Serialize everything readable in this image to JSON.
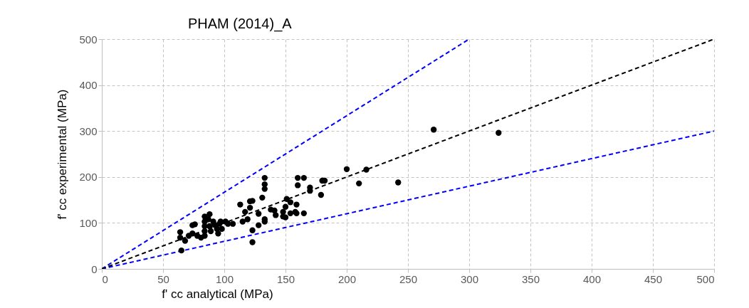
{
  "chart_data": {
    "type": "scatter",
    "title": "PHAM (2014)_A",
    "xlabel": "f' cc analytical (MPa)",
    "ylabel": "f' cc experimental (MPa)",
    "xlim": [
      0,
      500
    ],
    "ylim": [
      0,
      500
    ],
    "xticks": [
      0,
      50,
      100,
      150,
      200,
      250,
      300,
      350,
      400,
      450,
      500
    ],
    "yticks": [
      0,
      100,
      200,
      300,
      400,
      500
    ],
    "grid": true,
    "series": [
      {
        "type": "line",
        "color": "#0000ff",
        "line_style": "dashed",
        "marker": "none",
        "x": [
          0,
          300
        ],
        "values": [
          0,
          500
        ]
      },
      {
        "type": "line",
        "color": "#0000ff",
        "line_style": "dashed",
        "marker": "none",
        "x": [
          0,
          500
        ],
        "values": [
          0,
          300
        ]
      },
      {
        "type": "line",
        "color": "#000000",
        "line_style": "dashed",
        "marker": "none",
        "x": [
          0,
          500
        ],
        "values": [
          0,
          500
        ]
      },
      {
        "type": "scatter",
        "color": "#000000",
        "marker": "circle",
        "x": [
          271,
          324,
          200,
          216,
          210,
          242,
          160,
          165,
          160,
          180,
          182,
          179,
          170,
          170,
          165,
          133,
          133,
          133,
          131,
          113,
          121,
          123,
          121,
          117,
          128,
          115,
          119,
          123,
          123,
          128,
          133,
          133,
          138,
          141,
          142,
          150,
          151,
          154,
          148,
          150,
          154,
          158,
          159,
          159,
          148,
          107,
          64,
          64,
          65,
          68,
          71,
          74,
          76,
          74,
          78,
          81,
          84,
          84,
          84,
          84,
          84,
          87,
          88,
          89,
          91,
          92,
          94,
          95,
          96,
          98,
          97,
          101,
          103,
          88
        ],
        "values": [
          303,
          296,
          217,
          216,
          186,
          188,
          198,
          198,
          182,
          192,
          192,
          161,
          177,
          170,
          121,
          198,
          184,
          174,
          155,
          140,
          147,
          148,
          133,
          124,
          120,
          103,
          108,
          84,
          58,
          95,
          108,
          103,
          129,
          127,
          117,
          135,
          152,
          145,
          114,
          112,
          121,
          124,
          140,
          121,
          124,
          98,
          80,
          68,
          40,
          61,
          72,
          95,
          97,
          77,
          72,
          68,
          114,
          103,
          93,
          82,
          72,
          108,
          93,
          82,
          103,
          96,
          87,
          77,
          98,
          87,
          103,
          103,
          98,
          119
        ]
      }
    ]
  }
}
